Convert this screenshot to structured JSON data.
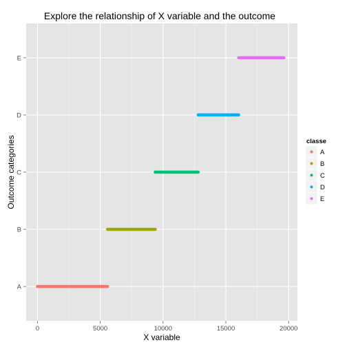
{
  "chart_data": {
    "type": "scatter",
    "title": "Explore the relationship of X variable and the outcome",
    "xlabel": "X variable",
    "ylabel": "Outcome categories",
    "xlim": [
      -900,
      20700
    ],
    "x_ticks": [
      0,
      5000,
      10000,
      15000,
      20000
    ],
    "y_categories": [
      "A",
      "B",
      "C",
      "D",
      "E"
    ],
    "grid": true,
    "legend_position": "right",
    "legend_title": "classe",
    "series": [
      {
        "name": "A",
        "color": "#F8766D",
        "x_range": [
          0,
          5580
        ]
      },
      {
        "name": "B",
        "color": "#A3A500",
        "x_range": [
          5580,
          9380
        ]
      },
      {
        "name": "C",
        "color": "#00BF7D",
        "x_range": [
          9380,
          12800
        ]
      },
      {
        "name": "D",
        "color": "#00B0F6",
        "x_range": [
          12800,
          16020
        ]
      },
      {
        "name": "E",
        "color": "#E76BF3",
        "x_range": [
          16020,
          19622
        ]
      }
    ]
  }
}
